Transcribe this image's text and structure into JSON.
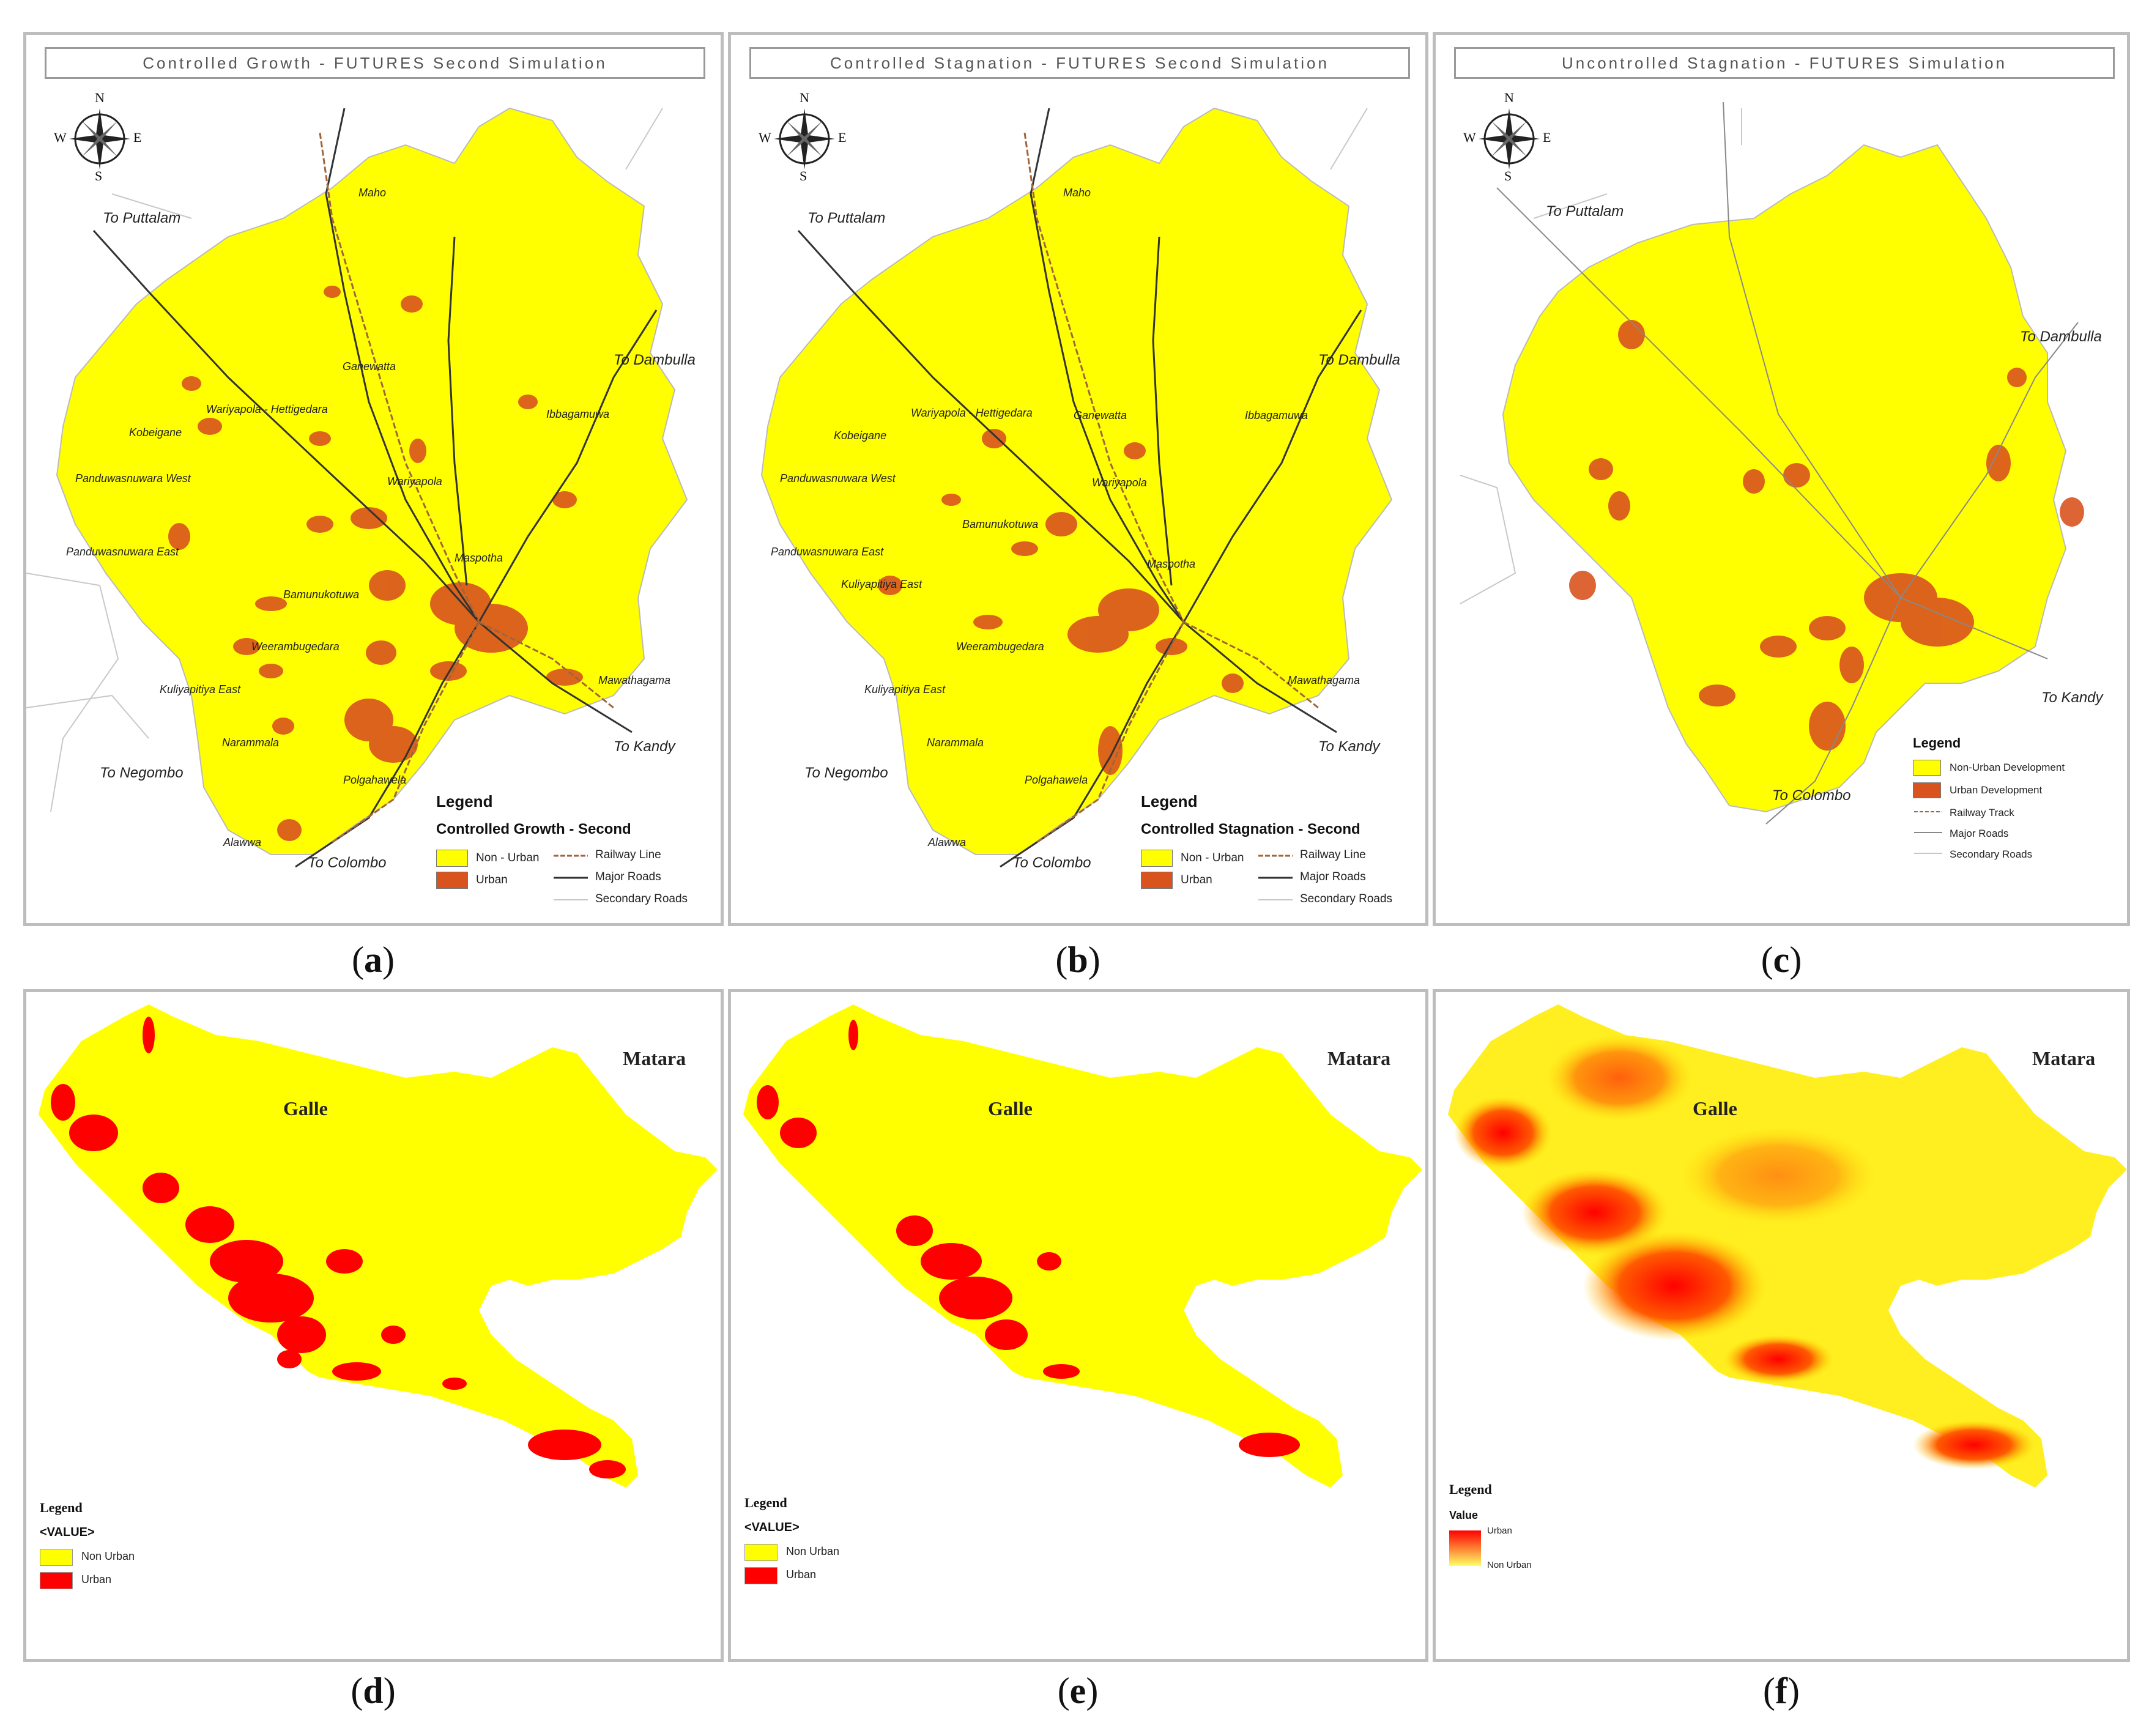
{
  "panels": {
    "a": {
      "caption_letter": "a",
      "title": "Controlled Growth - FUTURES Second Simulation",
      "legend_title": "Legend",
      "legend_subtitle": "Controlled Growth - Second",
      "legend_items": [
        "Non - Urban",
        "Urban",
        "Railway Line",
        "Major Roads",
        "Secondary Roads"
      ],
      "destinations": [
        "To Puttalam",
        "To Dambulla",
        "To Kandy",
        "To Negombo",
        "To Colombo"
      ],
      "places": [
        "Maho",
        "Ganewatta",
        "Wariyapola - Hettigedara",
        "Kobeigane",
        "Ibbagamuwa",
        "Panduwasnuwara West",
        "Wariyapola",
        "Panduwasnuwara East",
        "Maspotha",
        "Bamunukotuwa",
        "Weerambugedara",
        "Kuliyapitiya East",
        "Mawathagama",
        "Narammala",
        "Polgahawela",
        "Alawwa"
      ]
    },
    "b": {
      "caption_letter": "b",
      "title": "Controlled Stagnation - FUTURES Second Simulation",
      "legend_title": "Legend",
      "legend_subtitle": "Controlled Stagnation - Second",
      "legend_items": [
        "Non - Urban",
        "Urban",
        "Railway Line",
        "Major Roads",
        "Secondary Roads"
      ],
      "destinations": [
        "To Puttalam",
        "To Dambulla",
        "To Kandy",
        "To Negombo",
        "To Colombo"
      ],
      "places": [
        "Maho",
        "Wariyapola - Hettigedara",
        "Ganewatta",
        "Ibbagamuwa",
        "Kobeigane",
        "Panduwasnuwara West",
        "Wariyapola",
        "Bamunukotuwa",
        "Panduwasnuwara East",
        "Maspotha",
        "Kuliyapitiya East",
        "Weerambugedara",
        "Kuliyapitiya East",
        "Mawathagama",
        "Narammala",
        "Polgahawela",
        "Alawwa"
      ]
    },
    "c": {
      "caption_letter": "c",
      "title": "Uncontrolled Stagnation - FUTURES Simulation",
      "legend_title": "Legend",
      "legend_items": [
        "Non-Urban Development",
        "Urban Development",
        "Railway Track",
        "Major Roads",
        "Secondary Roads"
      ],
      "destinations": [
        "To Puttalam",
        "To Dambulla",
        "To Kandy",
        "To Colombo"
      ]
    },
    "d": {
      "caption_letter": "d",
      "cities": [
        "Galle",
        "Matara"
      ],
      "legend_title": "Legend",
      "legend_value": "<VALUE>",
      "legend_items": [
        "Non Urban",
        "Urban"
      ]
    },
    "e": {
      "caption_letter": "e",
      "cities": [
        "Galle",
        "Matara"
      ],
      "legend_title": "Legend",
      "legend_value": "<VALUE>",
      "legend_items": [
        "Non Urban",
        "Urban"
      ]
    },
    "f": {
      "caption_letter": "f",
      "cities": [
        "Galle",
        "Matara"
      ],
      "legend_title": "Legend",
      "legend_value": "Value",
      "legend_items": [
        "Urban",
        "Non Urban"
      ]
    }
  },
  "compass": [
    "N",
    "S",
    "E",
    "W"
  ],
  "colors": {
    "non_urban": "#ffff00",
    "urban_kurunegala": "#d9531e",
    "urban_galle": "#ff0000",
    "panel_border": "#bdbdbd"
  }
}
